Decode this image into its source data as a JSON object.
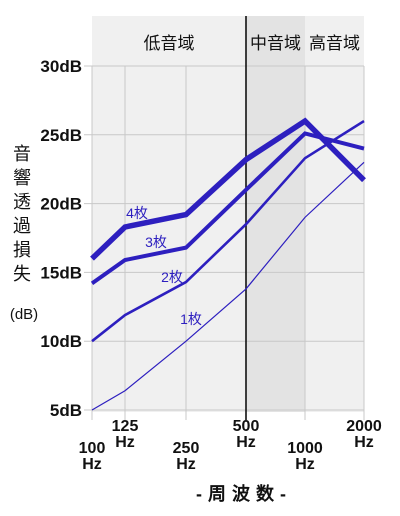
{
  "chart_data": {
    "type": "line",
    "title": "",
    "x": [
      "100\nHz",
      "125\nHz",
      "250\nHz",
      "500\nHz",
      "1000\nHz",
      "2000\nHz"
    ],
    "x_values_hz": [
      100,
      125,
      250,
      500,
      1000,
      2000
    ],
    "xlabel": "-周波数-",
    "ylabel": "音響透過損失",
    "yunit": "(dB)",
    "ylim": [
      5,
      30
    ],
    "yticks": [
      "5dB",
      "10dB",
      "15dB",
      "20dB",
      "25dB",
      "30dB"
    ],
    "ytick_values": [
      5,
      10,
      15,
      20,
      25,
      30
    ],
    "bands": [
      {
        "label": "低音域",
        "from_hz": 100,
        "to_hz": 500,
        "color": "#f0f0f0"
      },
      {
        "label": "中音域",
        "from_hz": 500,
        "to_hz": 1000,
        "color": "#e3e3e3"
      },
      {
        "label": "高音域",
        "from_hz": 1000,
        "to_hz": 2000,
        "color": "#f0f0f0"
      }
    ],
    "series_color": "#2d1fbf",
    "series": [
      {
        "name": "4枚",
        "x": [
          100,
          125,
          250,
          500,
          1000,
          2000
        ],
        "values": [
          16.0,
          18.3,
          19.2,
          23.2,
          26.0,
          21.7
        ],
        "weight": "heaviest"
      },
      {
        "name": "3枚",
        "x": [
          100,
          125,
          250,
          500,
          1000,
          2000
        ],
        "values": [
          14.2,
          15.9,
          16.8,
          21.0,
          25.1,
          24.0
        ],
        "weight": "heavy"
      },
      {
        "name": "2枚",
        "x": [
          100,
          125,
          250,
          500,
          1000,
          2000
        ],
        "values": [
          10.0,
          11.9,
          14.3,
          18.5,
          23.3,
          26.0
        ],
        "weight": "medium"
      },
      {
        "name": "1枚",
        "x": [
          100,
          125,
          250,
          500,
          1000,
          2000
        ],
        "values": [
          5.0,
          6.4,
          10.0,
          13.8,
          19.0,
          23.0
        ],
        "weight": "thin"
      }
    ]
  }
}
